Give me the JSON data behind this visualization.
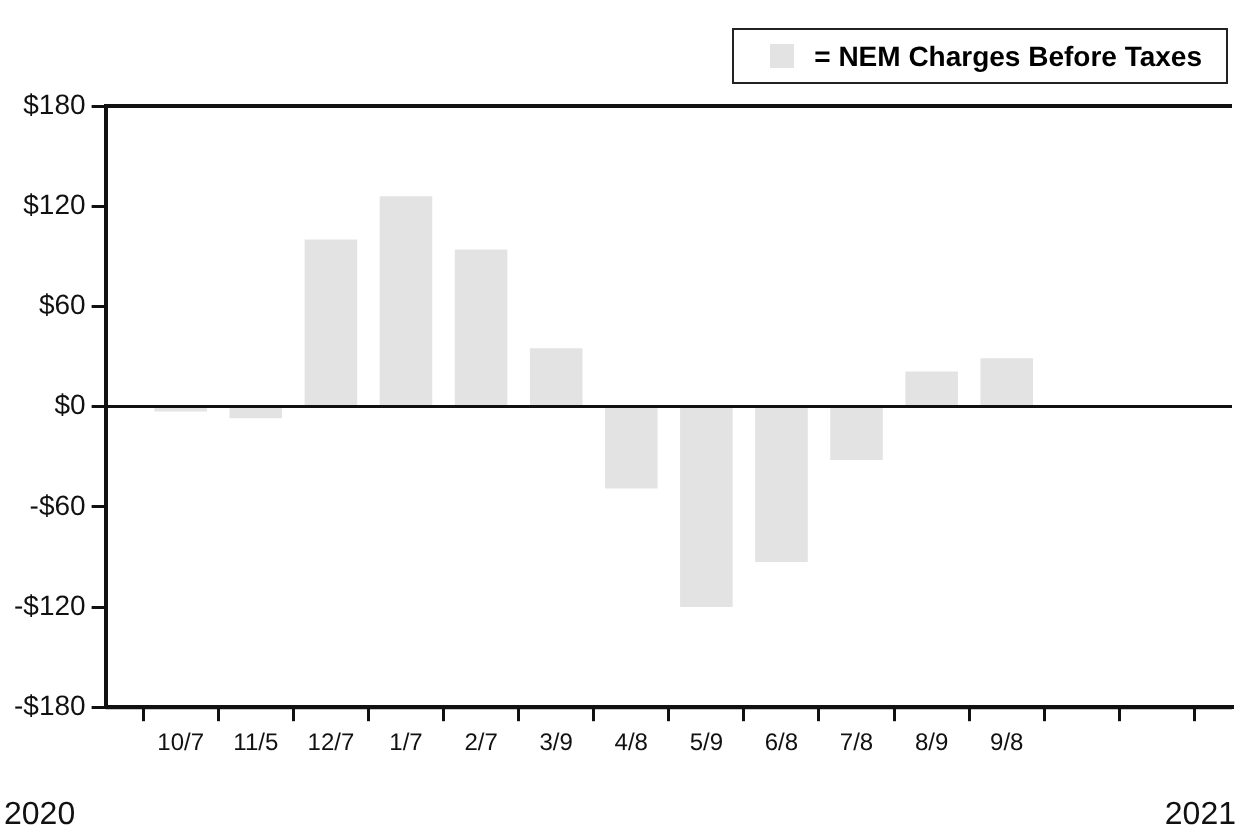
{
  "chart_data": {
    "type": "bar",
    "categories": [
      null,
      "10/7",
      "11/5",
      "12/7",
      "1/7",
      "2/7",
      "3/9",
      "4/8",
      "5/9",
      "6/8",
      "7/8",
      "8/9",
      "9/8",
      null,
      null,
      null
    ],
    "series": [
      {
        "name": "= NEM Charges Before Taxes",
        "color": "#e3e3e3",
        "values": [
          null,
          -3,
          -7,
          100,
          126,
          94,
          35,
          -49,
          -120,
          -93,
          -32,
          21,
          29,
          null,
          null,
          null
        ]
      }
    ],
    "ylim": [
      -180,
      180
    ],
    "yticks": [
      {
        "value": -180,
        "label": "-$180"
      },
      {
        "value": -120,
        "label": "-$120"
      },
      {
        "value": -60,
        "label": "-$60"
      },
      {
        "value": 0,
        "label": "$0"
      },
      {
        "value": 60,
        "label": "$60"
      },
      {
        "value": 120,
        "label": "$120"
      },
      {
        "value": 180,
        "label": "$180"
      }
    ],
    "ref_lines": [
      {
        "axis": "y",
        "value": 0
      }
    ],
    "annotations": [
      "2020",
      "2021"
    ],
    "legend": "top right",
    "grid": false
  }
}
